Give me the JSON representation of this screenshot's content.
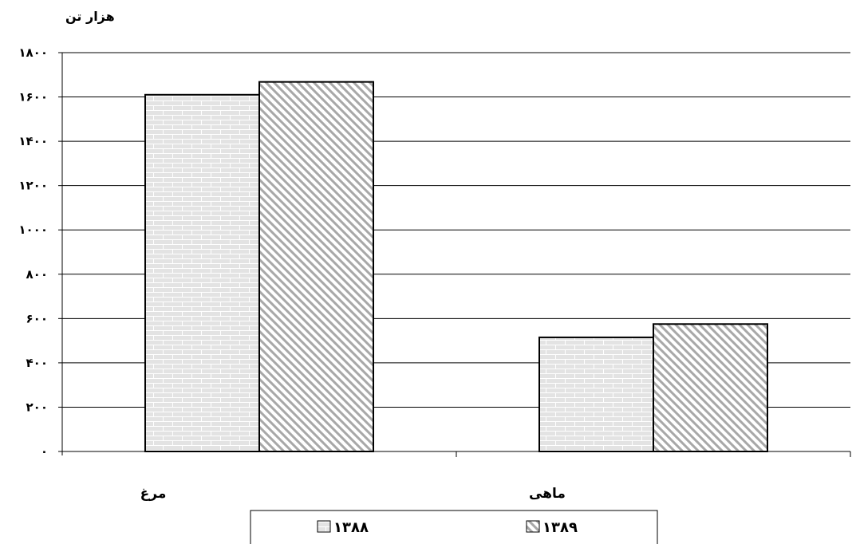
{
  "chart_data": {
    "type": "bar",
    "unit_label": "هزار تن",
    "categories": [
      "مرغ",
      "ماهی"
    ],
    "series": [
      {
        "name": "۱۳۸۸",
        "values": [
          1610,
          515
        ],
        "pattern": "brick"
      },
      {
        "name": "۱۳۸۹",
        "values": [
          1668,
          575
        ],
        "pattern": "diagonal"
      }
    ],
    "ylim": [
      0,
      1800
    ],
    "yticks": [
      {
        "value": 0,
        "label": "۰"
      },
      {
        "value": 200,
        "label": "۲۰۰"
      },
      {
        "value": 400,
        "label": "۴۰۰"
      },
      {
        "value": 600,
        "label": "۶۰۰"
      },
      {
        "value": 800,
        "label": "۸۰۰"
      },
      {
        "value": 1000,
        "label": "۱۰۰۰"
      },
      {
        "value": 1200,
        "label": "۱۲۰۰"
      },
      {
        "value": 1400,
        "label": "۱۴۰۰"
      },
      {
        "value": 1600,
        "label": "۱۶۰۰"
      },
      {
        "value": 1800,
        "label": "۱۸۰۰"
      }
    ],
    "grid": true,
    "legend_position": "bottom",
    "colors": {
      "brick_fill": "#e3e3e3",
      "brick_line": "#ffffff",
      "diag_fill": "#ffffff",
      "diag_line": "#a8a8a8",
      "axis": "#000000",
      "grid": "#000000"
    }
  }
}
